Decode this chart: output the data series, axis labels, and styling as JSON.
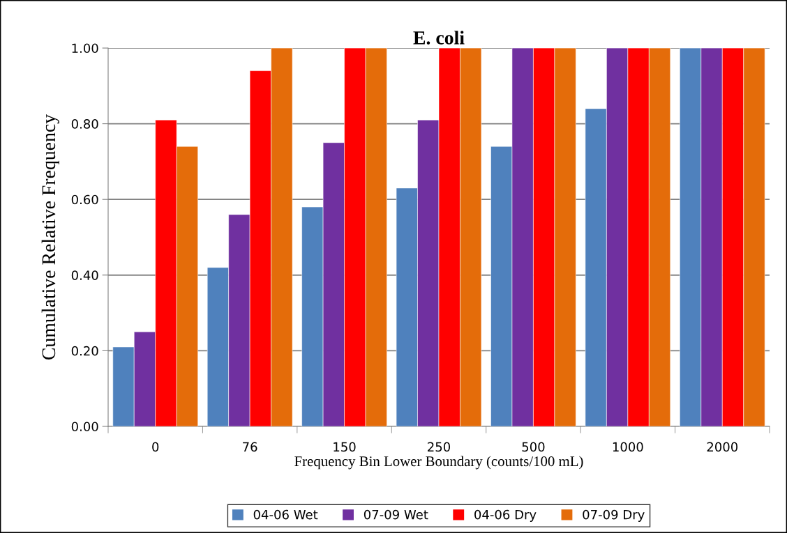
{
  "chart_data": {
    "type": "bar",
    "title": "E. coli",
    "xlabel": "Frequency Bin Lower Boundary (counts/100 mL)",
    "ylabel": "Cumulative Relative Frequency",
    "categories": [
      "0",
      "76",
      "150",
      "250",
      "500",
      "1000",
      "2000"
    ],
    "series": [
      {
        "name": "04-06 Wet",
        "color": "#4f81bd",
        "values": [
          0.21,
          0.42,
          0.58,
          0.63,
          0.74,
          0.84,
          1.0
        ]
      },
      {
        "name": "07-09 Wet",
        "color": "#7030a0",
        "values": [
          0.25,
          0.56,
          0.75,
          0.81,
          1.0,
          1.0,
          1.0
        ]
      },
      {
        "name": "04-06 Dry",
        "color": "#ff0000",
        "values": [
          0.81,
          0.94,
          1.0,
          1.0,
          1.0,
          1.0,
          1.0
        ]
      },
      {
        "name": "07-09 Dry",
        "color": "#e46c0a",
        "values": [
          0.74,
          1.0,
          1.0,
          1.0,
          1.0,
          1.0,
          1.0
        ]
      }
    ],
    "ylim": [
      0,
      1
    ],
    "yticks": [
      {
        "value": 0,
        "label": "0.00"
      },
      {
        "value": 0.2,
        "label": "0.20"
      },
      {
        "value": 0.4,
        "label": "0.40"
      },
      {
        "value": 0.6,
        "label": "0.60"
      },
      {
        "value": 0.8,
        "label": "0.80"
      },
      {
        "value": 1,
        "label": "1.00"
      }
    ],
    "grid": "y",
    "legend": "bottom"
  }
}
